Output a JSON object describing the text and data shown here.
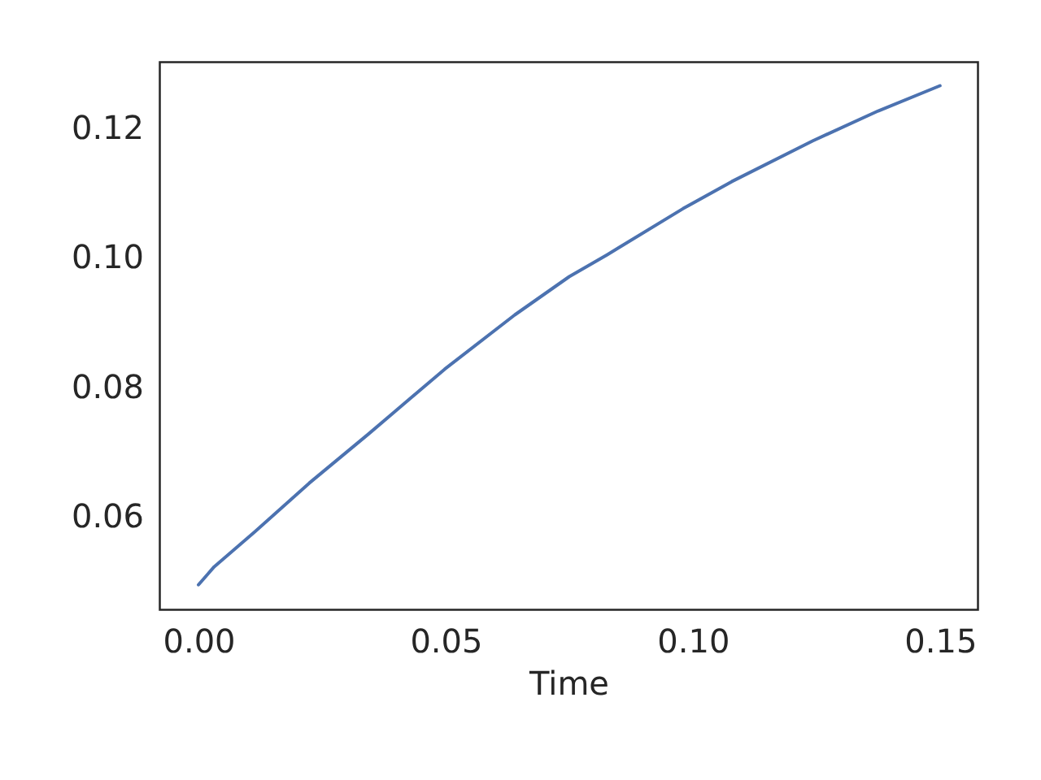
{
  "chart_data": {
    "type": "line",
    "xlabel": "Time",
    "x": [
      0,
      0.0032,
      0.0114,
      0.0224,
      0.0344,
      0.0498,
      0.064,
      0.075,
      0.0827,
      0.098,
      0.1079,
      0.1243,
      0.1375,
      0.15
    ],
    "series": [
      {
        "color": "#4c72b0",
        "values": [
          0.0495,
          0.0523,
          0.0577,
          0.0652,
          0.0728,
          0.0828,
          0.0912,
          0.0971,
          0.1005,
          0.1076,
          0.1118,
          0.1181,
          0.1227,
          0.1266
        ]
      }
    ],
    "xlim": [
      -0.0079,
      0.1576
    ],
    "ylim": [
      0.0457,
      0.1303
    ],
    "xticks": [
      {
        "value": 0,
        "label": "0.00"
      },
      0.05,
      {
        "value": 0.1,
        "label": "0.10"
      },
      0.15
    ],
    "yticks": [
      0.06,
      0.08,
      {
        "value": 0.1,
        "label": "0.10"
      },
      0.12
    ],
    "grid": false
  }
}
